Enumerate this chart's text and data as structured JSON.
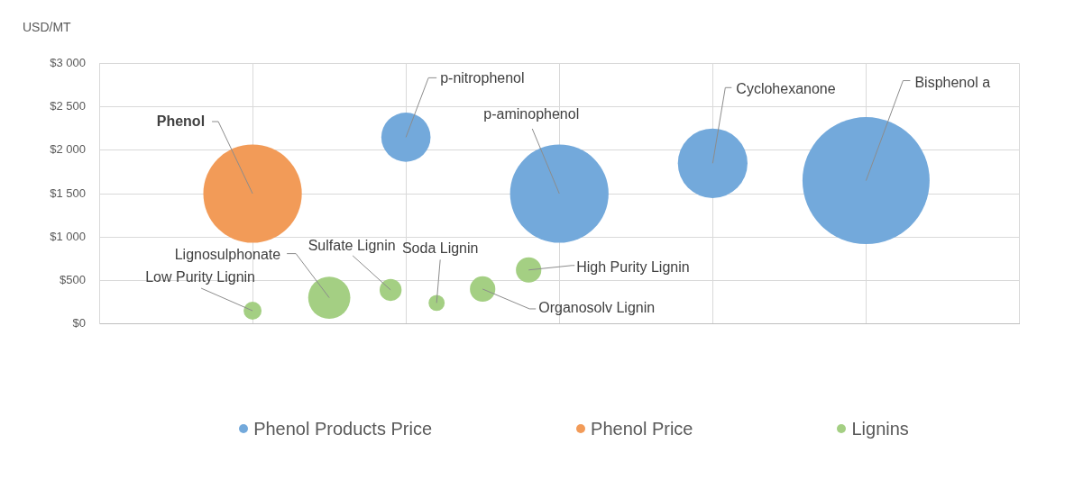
{
  "chart_data": {
    "type": "bubble",
    "ylabel": "USD/MT",
    "categories": [
      null,
      null,
      null,
      null,
      null,
      null,
      null,
      null,
      null,
      null,
      null,
      null,
      null,
      null,
      null,
      null,
      null,
      null,
      null,
      null,
      null,
      null,
      null,
      null,
      null,
      null,
      null,
      null,
      null,
      null,
      null,
      null,
      null,
      null,
      null,
      null,
      null,
      null,
      null,
      null,
      null,
      null,
      null,
      null,
      null,
      null,
      null,
      null,
      null,
      null,
      null,
      null,
      null,
      null,
      null,
      null,
      null,
      null,
      null,
      null,
      null
    ],
    "ylim": [
      0,
      3000
    ],
    "yticks": [
      {
        "value": 0,
        "label": "$0"
      },
      {
        "value": 500,
        "label": "$500"
      },
      {
        "value": 1000,
        "label": "$1 000"
      },
      {
        "value": 1500,
        "label": "$1 500"
      },
      {
        "value": 2000,
        "label": "$2 000"
      },
      {
        "value": 2500,
        "label": "$2 500"
      },
      {
        "value": 3000,
        "label": "$3 000"
      }
    ],
    "tick_labels": "y",
    "grid": true,
    "legend": "bottom",
    "series": [
      {
        "name": "Phenol Products Price",
        "color": "#73a9db",
        "values": [
          null,
          null,
          null,
          null,
          null,
          null,
          null,
          null,
          null,
          null,
          null,
          null,
          null,
          null,
          null,
          null,
          null,
          null,
          null,
          null,
          2150,
          null,
          null,
          null,
          null,
          null,
          null,
          null,
          null,
          null,
          1500,
          null,
          null,
          null,
          null,
          null,
          null,
          null,
          null,
          null,
          1850,
          null,
          null,
          null,
          null,
          null,
          null,
          null,
          null,
          null,
          1650,
          null,
          null,
          null,
          null,
          null,
          null,
          null,
          null,
          null,
          null
        ],
        "sizes": [
          null,
          null,
          null,
          null,
          null,
          null,
          null,
          null,
          null,
          null,
          null,
          null,
          null,
          null,
          null,
          null,
          null,
          null,
          null,
          null,
          0.15,
          null,
          null,
          null,
          null,
          null,
          null,
          null,
          null,
          null,
          0.6,
          null,
          null,
          null,
          null,
          null,
          null,
          null,
          null,
          null,
          0.3,
          null,
          null,
          null,
          null,
          null,
          null,
          null,
          null,
          null,
          1,
          null,
          null,
          null,
          null,
          null,
          null,
          null,
          null,
          null,
          null
        ],
        "value_labels": [
          null,
          null,
          null,
          null,
          null,
          null,
          null,
          null,
          null,
          null,
          null,
          null,
          null,
          null,
          null,
          null,
          null,
          null,
          null,
          null,
          "p-nitrophenol",
          null,
          null,
          null,
          null,
          null,
          null,
          null,
          null,
          null,
          "p-aminophenol",
          null,
          null,
          null,
          null,
          null,
          null,
          null,
          null,
          null,
          "Cyclohexanone",
          null,
          null,
          null,
          null,
          null,
          null,
          null,
          null,
          null,
          "Bisphenol a",
          null,
          null,
          null,
          null,
          null,
          null,
          null,
          null,
          null,
          null
        ]
      },
      {
        "name": "Phenol Price",
        "color": "#f29b58",
        "values": [
          null,
          null,
          null,
          null,
          null,
          null,
          null,
          null,
          null,
          null,
          1500,
          null,
          null,
          null,
          null,
          null,
          null,
          null,
          null,
          null,
          null,
          null,
          null,
          null,
          null,
          null,
          null,
          null,
          null,
          null,
          null,
          null,
          null,
          null,
          null,
          null,
          null,
          null,
          null,
          null,
          null,
          null,
          null,
          null,
          null,
          null,
          null,
          null,
          null,
          null,
          null,
          null,
          null,
          null,
          null,
          null,
          null,
          null,
          null,
          null,
          null
        ],
        "sizes": [
          null,
          null,
          null,
          null,
          null,
          null,
          null,
          null,
          null,
          null,
          0.6,
          null,
          null,
          null,
          null,
          null,
          null,
          null,
          null,
          null,
          null,
          null,
          null,
          null,
          null,
          null,
          null,
          null,
          null,
          null,
          null,
          null,
          null,
          null,
          null,
          null,
          null,
          null,
          null,
          null,
          null,
          null,
          null,
          null,
          null,
          null,
          null,
          null,
          null,
          null,
          null,
          null,
          null,
          null,
          null,
          null,
          null,
          null,
          null,
          null,
          null
        ],
        "value_labels": [
          null,
          null,
          null,
          null,
          null,
          null,
          null,
          null,
          null,
          null,
          "Phenol",
          null,
          null,
          null,
          null,
          null,
          null,
          null,
          null,
          null,
          null,
          null,
          null,
          null,
          null,
          null,
          null,
          null,
          null,
          null,
          null,
          null,
          null,
          null,
          null,
          null,
          null,
          null,
          null,
          null,
          null,
          null,
          null,
          null,
          null,
          null,
          null,
          null,
          null,
          null,
          null,
          null,
          null,
          null,
          null,
          null,
          null,
          null,
          null,
          null,
          null
        ]
      },
      {
        "name": "Lignins",
        "color": "#a4cf83",
        "values": [
          null,
          null,
          null,
          null,
          null,
          null,
          null,
          null,
          null,
          null,
          150,
          null,
          null,
          null,
          null,
          300,
          null,
          null,
          null,
          390,
          null,
          null,
          240,
          null,
          null,
          400,
          null,
          null,
          620,
          null,
          null,
          null,
          null,
          null,
          null,
          null,
          null,
          null,
          null,
          null,
          null,
          null,
          null,
          null,
          null,
          null,
          null,
          null,
          null,
          null,
          null,
          null,
          null,
          null,
          null,
          null,
          null,
          null,
          null,
          null,
          null
        ],
        "sizes": [
          null,
          null,
          null,
          null,
          null,
          null,
          null,
          null,
          null,
          null,
          0.02,
          null,
          null,
          null,
          null,
          0.11,
          null,
          null,
          null,
          0.03,
          null,
          null,
          0.016,
          null,
          null,
          0.04,
          null,
          null,
          0.04,
          null,
          null,
          null,
          null,
          null,
          null,
          null,
          null,
          null,
          null,
          null,
          null,
          null,
          null,
          null,
          null,
          null,
          null,
          null,
          null,
          null,
          null,
          null,
          null,
          null,
          null,
          null,
          null,
          null,
          null,
          null,
          null
        ],
        "value_labels": [
          null,
          null,
          null,
          null,
          null,
          null,
          null,
          null,
          null,
          null,
          "Low Purity Lignin",
          null,
          null,
          null,
          null,
          "Lignosulphonate",
          null,
          null,
          null,
          "Sulfate Lignin",
          null,
          null,
          "Soda Lignin",
          null,
          null,
          "Organosolv Lignin",
          null,
          null,
          "High Purity Lignin",
          null,
          null,
          null,
          null,
          null,
          null,
          null,
          null,
          null,
          null,
          null,
          null,
          null,
          null,
          null,
          null,
          null,
          null,
          null,
          null,
          null,
          null,
          null,
          null,
          null,
          null,
          null,
          null,
          null,
          null,
          null,
          null
        ]
      }
    ]
  }
}
